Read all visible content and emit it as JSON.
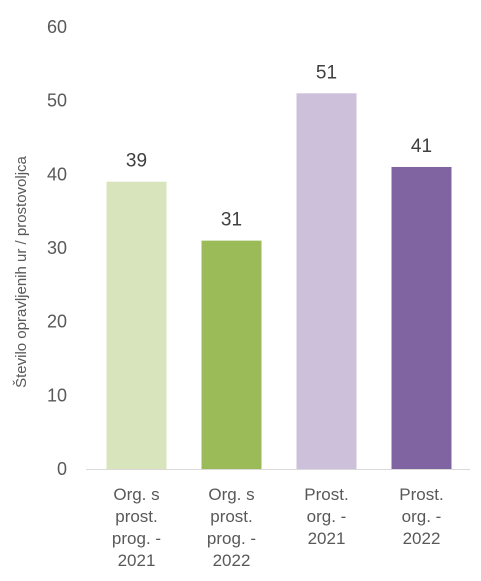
{
  "chart_data": {
    "type": "bar",
    "title": "",
    "xlabel": "",
    "ylabel": "Število opravljenih ur / prostovoljca",
    "ylim": [
      0,
      60
    ],
    "yticks": [
      0,
      10,
      20,
      30,
      40,
      50,
      60
    ],
    "grid": false,
    "legend": "none",
    "categories": [
      [
        "Org. s",
        "prost.",
        "prog. -",
        "2021"
      ],
      [
        "Org. s",
        "prost.",
        "prog. -",
        "2022"
      ],
      [
        "Prost.",
        "org. -",
        "2021"
      ],
      [
        "Prost.",
        "org. -",
        "2022"
      ]
    ],
    "values": [
      39,
      31,
      51,
      41
    ],
    "colors": [
      "#d8e4bc",
      "#9bbb59",
      "#ccc0da",
      "#8064a2"
    ],
    "axis_color": "#d9d9d9"
  }
}
